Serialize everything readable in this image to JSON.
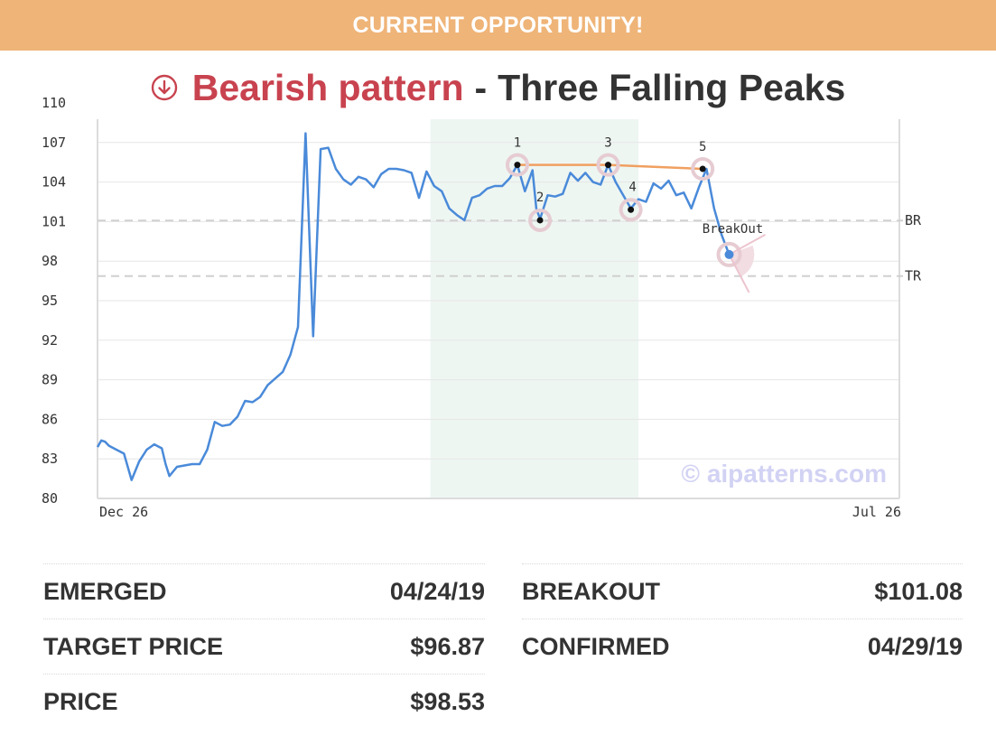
{
  "banner": {
    "text": "CURRENT OPPORTUNITY!"
  },
  "title": {
    "icon": "arrow-down-circle-icon",
    "pattern_type": "Bearish pattern",
    "separator": "-",
    "pattern_name": "Three Falling Peaks"
  },
  "colors": {
    "banner": "#efb478",
    "bearish": "#c8434f",
    "price_line": "#4a8ad9",
    "peak_line": "#f0a060",
    "pattern_zone": "#eef6f2",
    "marker_halo": "#e6ccd2",
    "watermark": "#d2d2f4"
  },
  "chart_data": {
    "type": "line",
    "ylim": [
      80,
      110
    ],
    "yticks": [
      80,
      83,
      86,
      89,
      92,
      95,
      98,
      101,
      104,
      107,
      110
    ],
    "x_start_label": "Dec 26",
    "x_end_label": "Jul 26",
    "x_range": [
      0,
      212
    ],
    "pattern_zone": [
      88,
      143
    ],
    "series": [
      {
        "values": [
          [
            0,
            83.9
          ],
          [
            1,
            84.4
          ],
          [
            2,
            84.3
          ],
          [
            3,
            84.0
          ],
          [
            5,
            83.7
          ],
          [
            7,
            83.4
          ],
          [
            9,
            81.4
          ],
          [
            11,
            82.8
          ],
          [
            13,
            83.7
          ],
          [
            15,
            84.1
          ],
          [
            17,
            83.8
          ],
          [
            18,
            82.6
          ],
          [
            19,
            81.7
          ],
          [
            21,
            82.4
          ],
          [
            23,
            82.5
          ],
          [
            25,
            82.6
          ],
          [
            27,
            82.6
          ],
          [
            29,
            83.7
          ],
          [
            31,
            85.8
          ],
          [
            33,
            85.5
          ],
          [
            35,
            85.6
          ],
          [
            37,
            86.2
          ],
          [
            39,
            87.4
          ],
          [
            41,
            87.3
          ],
          [
            43,
            87.7
          ],
          [
            45,
            88.6
          ],
          [
            47,
            89.1
          ],
          [
            49,
            89.6
          ],
          [
            51,
            90.9
          ],
          [
            53,
            93.0
          ],
          [
            55,
            107.7
          ],
          [
            57,
            92.3
          ],
          [
            59,
            106.5
          ],
          [
            61,
            106.6
          ],
          [
            63,
            105.0
          ],
          [
            65,
            104.2
          ],
          [
            67,
            103.8
          ],
          [
            69,
            104.4
          ],
          [
            71,
            104.2
          ],
          [
            73,
            103.6
          ],
          [
            75,
            104.6
          ],
          [
            77,
            105.0
          ],
          [
            79,
            105.0
          ],
          [
            81,
            104.9
          ],
          [
            83,
            104.7
          ],
          [
            85,
            102.8
          ],
          [
            87,
            104.8
          ],
          [
            89,
            103.7
          ],
          [
            91,
            103.3
          ],
          [
            93,
            102.0
          ],
          [
            95,
            101.5
          ],
          [
            97,
            101.1
          ],
          [
            99,
            102.8
          ],
          [
            101,
            103.0
          ],
          [
            103,
            103.5
          ],
          [
            105,
            103.7
          ],
          [
            107,
            103.7
          ],
          [
            109,
            104.3
          ],
          [
            111,
            105.3
          ],
          [
            113,
            103.3
          ],
          [
            115,
            104.9
          ],
          [
            116,
            102.0
          ],
          [
            117,
            101.2
          ],
          [
            119,
            103.0
          ],
          [
            121,
            102.9
          ],
          [
            123,
            103.1
          ],
          [
            125,
            104.7
          ],
          [
            127,
            104.1
          ],
          [
            129,
            104.7
          ],
          [
            131,
            104.0
          ],
          [
            133,
            103.8
          ],
          [
            135,
            105.3
          ],
          [
            137,
            104.0
          ],
          [
            139,
            103.0
          ],
          [
            141,
            102.0
          ],
          [
            143,
            102.7
          ],
          [
            145,
            102.5
          ],
          [
            147,
            103.9
          ],
          [
            149,
            103.5
          ],
          [
            151,
            104.1
          ],
          [
            153,
            103.0
          ],
          [
            155,
            103.2
          ],
          [
            157,
            102.0
          ],
          [
            159,
            103.6
          ],
          [
            161,
            105.0
          ],
          [
            163,
            102.0
          ],
          [
            165,
            100.0
          ],
          [
            167,
            98.5
          ]
        ]
      }
    ],
    "points": [
      {
        "label": "1",
        "x": 111,
        "y": 105.3
      },
      {
        "label": "2",
        "x": 117,
        "y": 101.1
      },
      {
        "label": "3",
        "x": 135,
        "y": 105.3
      },
      {
        "label": "4",
        "x": 141,
        "y": 101.9
      },
      {
        "label": "5",
        "x": 160,
        "y": 105.0
      }
    ],
    "breakout": {
      "label": "BreakOut",
      "x": 167,
      "y": 98.5
    },
    "lines": [
      {
        "label": "BR",
        "y": 101.08
      },
      {
        "label": "TR",
        "y": 96.87
      }
    ],
    "watermark": "© aipatterns.com"
  },
  "stats": {
    "left": [
      {
        "label": "EMERGED",
        "value": "04/24/19"
      },
      {
        "label": "TARGET PRICE",
        "value": "$96.87"
      },
      {
        "label": "PRICE",
        "value": "$98.53"
      }
    ],
    "right": [
      {
        "label": "BREAKOUT",
        "value": "$101.08"
      },
      {
        "label": "CONFIRMED",
        "value": "04/29/19"
      }
    ]
  }
}
